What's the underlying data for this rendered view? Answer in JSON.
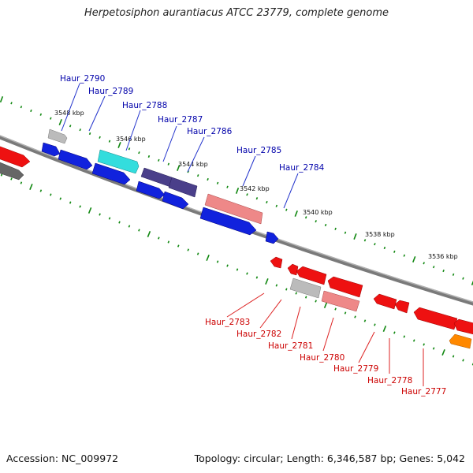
{
  "title": "Herpetosiphon aurantiacus ATCC 23779, complete genome",
  "accession_text": "Accession: NC_009972",
  "summary_text": "Topology: circular; Length: 6,346,587 bp; Genes: 5,042",
  "colors": {
    "forward_label": "#0000aa",
    "reverse_label": "#cc0000",
    "tick": "#118811",
    "backbone": "#888888"
  },
  "ticks": [
    {
      "label": "3548 kbp"
    },
    {
      "label": "3546 kbp"
    },
    {
      "label": "3544 kbp"
    },
    {
      "label": "3542 kbp"
    },
    {
      "label": "3540 kbp"
    },
    {
      "label": "3538 kbp"
    },
    {
      "label": "3536 kbp"
    }
  ],
  "forward_labels": [
    "Haur_2790",
    "Haur_2789",
    "Haur_2788",
    "Haur_2787",
    "Haur_2786",
    "Haur_2785",
    "Haur_2784"
  ],
  "reverse_labels": [
    "Haur_2783",
    "Haur_2782",
    "Haur_2781",
    "Haur_2780",
    "Haur_2779",
    "Haur_2778",
    "Haur_2777"
  ]
}
